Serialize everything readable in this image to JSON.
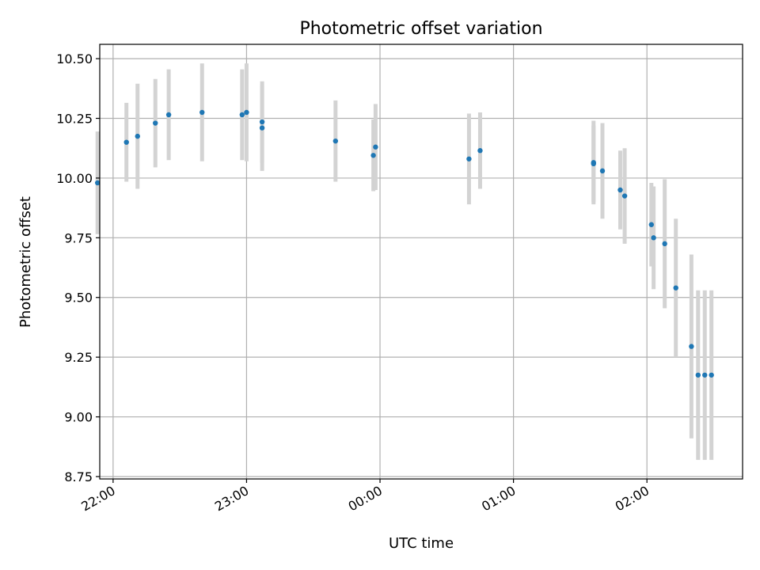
{
  "chart_data": {
    "type": "scatter",
    "title": "Photometric offset variation",
    "xlabel": "UTC time",
    "ylabel": "Photometric offset",
    "xlim": [
      "21:54",
      "02:43"
    ],
    "ylim": [
      8.74,
      10.56
    ],
    "x_ticks": [
      "22:00",
      "23:00",
      "00:00",
      "01:00",
      "02:00"
    ],
    "y_ticks": [
      "8.75",
      "9.00",
      "9.25",
      "9.50",
      "9.75",
      "10.00",
      "10.25",
      "10.50"
    ],
    "grid": true,
    "marker_color": "#1f77b4",
    "errorbar_color": "#d3d3d3",
    "points": [
      {
        "t": "21:53",
        "y": 9.98,
        "err": 0.215
      },
      {
        "t": "22:06",
        "y": 10.15,
        "err": 0.165
      },
      {
        "t": "22:11",
        "y": 10.175,
        "err": 0.22
      },
      {
        "t": "22:19",
        "y": 10.23,
        "err": 0.185
      },
      {
        "t": "22:25",
        "y": 10.265,
        "err": 0.19
      },
      {
        "t": "22:40",
        "y": 10.275,
        "err": 0.205
      },
      {
        "t": "22:58",
        "y": 10.265,
        "err": 0.19
      },
      {
        "t": "23:00",
        "y": 10.275,
        "err": 0.205
      },
      {
        "t": "23:07",
        "y": 10.21,
        "err": 0.18
      },
      {
        "t": "23:07",
        "y": 10.235,
        "err": 0.17
      },
      {
        "t": "23:40",
        "y": 10.155,
        "err": 0.17
      },
      {
        "t": "23:57",
        "y": 10.095,
        "err": 0.15
      },
      {
        "t": "23:58",
        "y": 10.13,
        "err": 0.18
      },
      {
        "t": "00:40",
        "y": 10.08,
        "err": 0.19
      },
      {
        "t": "00:45",
        "y": 10.115,
        "err": 0.16
      },
      {
        "t": "01:36",
        "y": 10.065,
        "err": 0.175
      },
      {
        "t": "01:36",
        "y": 10.06,
        "err": 0.16
      },
      {
        "t": "01:40",
        "y": 10.03,
        "err": 0.2
      },
      {
        "t": "01:48",
        "y": 9.95,
        "err": 0.165
      },
      {
        "t": "01:50",
        "y": 9.925,
        "err": 0.2
      },
      {
        "t": "02:02",
        "y": 9.805,
        "err": 0.175
      },
      {
        "t": "02:03",
        "y": 9.75,
        "err": 0.215
      },
      {
        "t": "02:08",
        "y": 9.725,
        "err": 0.27
      },
      {
        "t": "02:13",
        "y": 9.54,
        "err": 0.29
      },
      {
        "t": "02:20",
        "y": 9.295,
        "err": 0.385
      },
      {
        "t": "02:23",
        "y": 9.175,
        "err": 0.355
      },
      {
        "t": "02:26",
        "y": 9.175,
        "err": 0.355
      },
      {
        "t": "02:29",
        "y": 9.175,
        "err": 0.355
      }
    ]
  }
}
